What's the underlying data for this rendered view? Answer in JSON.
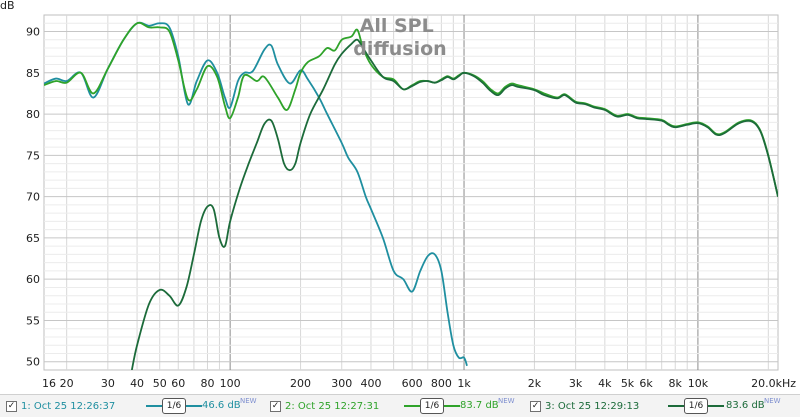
{
  "chart_data": {
    "type": "line",
    "title": "All SPL\ndiffusion",
    "ylabel": "dB",
    "x_scale": "log",
    "xlim": [
      16,
      22000
    ],
    "ylim": [
      49,
      92
    ],
    "y_ticks": [
      50,
      55,
      60,
      65,
      70,
      75,
      80,
      85,
      90
    ],
    "x_ticks": [
      {
        "v": 16,
        "label": "16"
      },
      {
        "v": 20,
        "label": "20"
      },
      {
        "v": 30,
        "label": "30"
      },
      {
        "v": 40,
        "label": "40"
      },
      {
        "v": 50,
        "label": "50"
      },
      {
        "v": 60,
        "label": "60"
      },
      {
        "v": 80,
        "label": "80"
      },
      {
        "v": 100,
        "label": "100"
      },
      {
        "v": 200,
        "label": "200"
      },
      {
        "v": 300,
        "label": "300"
      },
      {
        "v": 400,
        "label": "400"
      },
      {
        "v": 600,
        "label": "600"
      },
      {
        "v": 800,
        "label": "800"
      },
      {
        "v": 1000,
        "label": "1k"
      },
      {
        "v": 2000,
        "label": "2k"
      },
      {
        "v": 3000,
        "label": "3k"
      },
      {
        "v": 4000,
        "label": "4k"
      },
      {
        "v": 5000,
        "label": "5k"
      },
      {
        "v": 6000,
        "label": "6k"
      },
      {
        "v": 8000,
        "label": "8k"
      },
      {
        "v": 10000,
        "label": "10k"
      },
      {
        "v": 20000,
        "label": "20.0kHz"
      }
    ],
    "grid": true,
    "series": [
      {
        "color": "#1f8fa0",
        "points": [
          [
            16,
            83.7
          ],
          [
            18,
            84.3
          ],
          [
            20,
            84
          ],
          [
            23,
            85
          ],
          [
            26,
            82
          ],
          [
            30,
            85.5
          ],
          [
            35,
            89
          ],
          [
            40,
            91
          ],
          [
            45,
            90.7
          ],
          [
            50,
            91
          ],
          [
            55,
            90.5
          ],
          [
            60,
            87
          ],
          [
            66,
            81.2
          ],
          [
            72,
            84
          ],
          [
            80,
            86.5
          ],
          [
            88,
            85
          ],
          [
            95,
            82
          ],
          [
            100,
            80.8
          ],
          [
            108,
            84
          ],
          [
            115,
            85
          ],
          [
            125,
            85.2
          ],
          [
            140,
            87.8
          ],
          [
            150,
            88.3
          ],
          [
            160,
            86
          ],
          [
            180,
            83.7
          ],
          [
            200,
            85.3
          ],
          [
            215,
            84.2
          ],
          [
            240,
            82
          ],
          [
            260,
            80
          ],
          [
            300,
            76.5
          ],
          [
            320,
            74.7
          ],
          [
            350,
            73
          ],
          [
            380,
            70
          ],
          [
            400,
            68.5
          ],
          [
            450,
            65
          ],
          [
            500,
            61
          ],
          [
            550,
            60
          ],
          [
            600,
            58.5
          ],
          [
            650,
            61
          ],
          [
            700,
            62.8
          ],
          [
            750,
            63
          ],
          [
            800,
            61
          ],
          [
            850,
            56
          ],
          [
            900,
            52
          ],
          [
            950,
            50.5
          ],
          [
            1000,
            50.5
          ],
          [
            1030,
            49.5
          ]
        ]
      },
      {
        "color": "#2fa32a",
        "points": [
          [
            16,
            83.5
          ],
          [
            18,
            84
          ],
          [
            20,
            83.8
          ],
          [
            23,
            85
          ],
          [
            26,
            82.5
          ],
          [
            30,
            85.5
          ],
          [
            35,
            89
          ],
          [
            40,
            91
          ],
          [
            45,
            90.5
          ],
          [
            50,
            90.5
          ],
          [
            55,
            90
          ],
          [
            60,
            86.5
          ],
          [
            66,
            81.8
          ],
          [
            72,
            83
          ],
          [
            80,
            85.8
          ],
          [
            88,
            84.5
          ],
          [
            95,
            81
          ],
          [
            100,
            79.5
          ],
          [
            108,
            82
          ],
          [
            115,
            84.7
          ],
          [
            130,
            84
          ],
          [
            140,
            84.5
          ],
          [
            160,
            82
          ],
          [
            175,
            80.5
          ],
          [
            190,
            83
          ],
          [
            200,
            85
          ],
          [
            215,
            86.3
          ],
          [
            240,
            87
          ],
          [
            260,
            88
          ],
          [
            280,
            87.7
          ],
          [
            300,
            89
          ],
          [
            330,
            89.4
          ],
          [
            350,
            90.2
          ],
          [
            370,
            88
          ],
          [
            400,
            86
          ],
          [
            450,
            84.5
          ],
          [
            500,
            84.2
          ],
          [
            550,
            83
          ],
          [
            600,
            83.5
          ],
          [
            650,
            84
          ],
          [
            700,
            84
          ],
          [
            750,
            83.8
          ],
          [
            800,
            84.2
          ],
          [
            850,
            84.6
          ],
          [
            900,
            84.3
          ],
          [
            950,
            84.7
          ],
          [
            1000,
            85
          ],
          [
            1100,
            84.7
          ],
          [
            1200,
            84
          ],
          [
            1300,
            83
          ],
          [
            1400,
            82.5
          ],
          [
            1500,
            83.3
          ],
          [
            1600,
            83.7
          ],
          [
            1700,
            83.5
          ],
          [
            2000,
            83
          ],
          [
            2200,
            82.5
          ],
          [
            2500,
            82
          ],
          [
            2700,
            82.4
          ],
          [
            3000,
            81.5
          ],
          [
            3300,
            81.3
          ],
          [
            3600,
            80.9
          ],
          [
            4000,
            80.6
          ],
          [
            4500,
            79.8
          ],
          [
            5000,
            80
          ],
          [
            5500,
            79.6
          ],
          [
            6000,
            79.5
          ],
          [
            7000,
            79.3
          ],
          [
            7500,
            78.8
          ],
          [
            8000,
            78.5
          ],
          [
            9000,
            78.8
          ],
          [
            10000,
            79
          ],
          [
            11000,
            78.5
          ],
          [
            12000,
            77.6
          ],
          [
            13000,
            77.8
          ],
          [
            15000,
            79
          ],
          [
            17000,
            79.2
          ],
          [
            18500,
            78
          ],
          [
            20000,
            75
          ],
          [
            22000,
            70
          ]
        ]
      },
      {
        "color": "#1c6b3a",
        "points": [
          [
            38,
            49
          ],
          [
            40,
            52
          ],
          [
            45,
            57
          ],
          [
            50,
            58.7
          ],
          [
            55,
            58
          ],
          [
            60,
            56.8
          ],
          [
            65,
            59
          ],
          [
            70,
            63
          ],
          [
            75,
            67
          ],
          [
            80,
            68.8
          ],
          [
            85,
            68.5
          ],
          [
            90,
            65
          ],
          [
            95,
            64
          ],
          [
            100,
            67
          ],
          [
            110,
            71
          ],
          [
            120,
            74
          ],
          [
            130,
            76.5
          ],
          [
            140,
            78.8
          ],
          [
            150,
            79.2
          ],
          [
            160,
            77
          ],
          [
            170,
            74
          ],
          [
            180,
            73.2
          ],
          [
            190,
            74
          ],
          [
            200,
            76.5
          ],
          [
            220,
            80
          ],
          [
            250,
            83
          ],
          [
            280,
            86
          ],
          [
            300,
            87.3
          ],
          [
            330,
            88.5
          ],
          [
            350,
            89
          ],
          [
            370,
            88
          ],
          [
            400,
            86.5
          ],
          [
            450,
            84.5
          ],
          [
            500,
            84
          ],
          [
            550,
            83
          ],
          [
            600,
            83.4
          ],
          [
            650,
            83.9
          ],
          [
            700,
            84
          ],
          [
            750,
            83.8
          ],
          [
            800,
            84.1
          ],
          [
            850,
            84.5
          ],
          [
            900,
            84.2
          ],
          [
            950,
            84.6
          ],
          [
            1000,
            85
          ],
          [
            1100,
            84.6
          ],
          [
            1200,
            83.8
          ],
          [
            1300,
            82.8
          ],
          [
            1400,
            82.3
          ],
          [
            1500,
            83.1
          ],
          [
            1600,
            83.5
          ],
          [
            1700,
            83.3
          ],
          [
            2000,
            82.9
          ],
          [
            2200,
            82.3
          ],
          [
            2500,
            81.9
          ],
          [
            2700,
            82.3
          ],
          [
            3000,
            81.4
          ],
          [
            3300,
            81.2
          ],
          [
            3600,
            80.8
          ],
          [
            4000,
            80.5
          ],
          [
            4500,
            79.7
          ],
          [
            5000,
            79.9
          ],
          [
            5500,
            79.5
          ],
          [
            6000,
            79.4
          ],
          [
            7000,
            79.2
          ],
          [
            7500,
            78.7
          ],
          [
            8000,
            78.4
          ],
          [
            9000,
            78.7
          ],
          [
            10000,
            78.9
          ],
          [
            11000,
            78.4
          ],
          [
            12000,
            77.5
          ],
          [
            13000,
            77.7
          ],
          [
            15000,
            78.9
          ],
          [
            17000,
            79.1
          ],
          [
            18500,
            77.9
          ],
          [
            20000,
            74.9
          ],
          [
            22000,
            70
          ]
        ]
      }
    ]
  },
  "legend": [
    {
      "checked": "✓",
      "name": "1: Oct 25 12:26:37",
      "smoothing": "1/6",
      "level": "46.6 dB",
      "badge": "NEW",
      "color": "#1f8fa0"
    },
    {
      "checked": "✓",
      "name": "2: Oct 25 12:27:31",
      "smoothing": "1/6",
      "level": "83.7 dB",
      "badge": "NEW",
      "color": "#2fa32a"
    },
    {
      "checked": "✓",
      "name": "3: Oct 25 12:29:13",
      "smoothing": "1/6",
      "level": "83.6 dB",
      "badge": "NEW",
      "color": "#1c6b3a"
    }
  ]
}
